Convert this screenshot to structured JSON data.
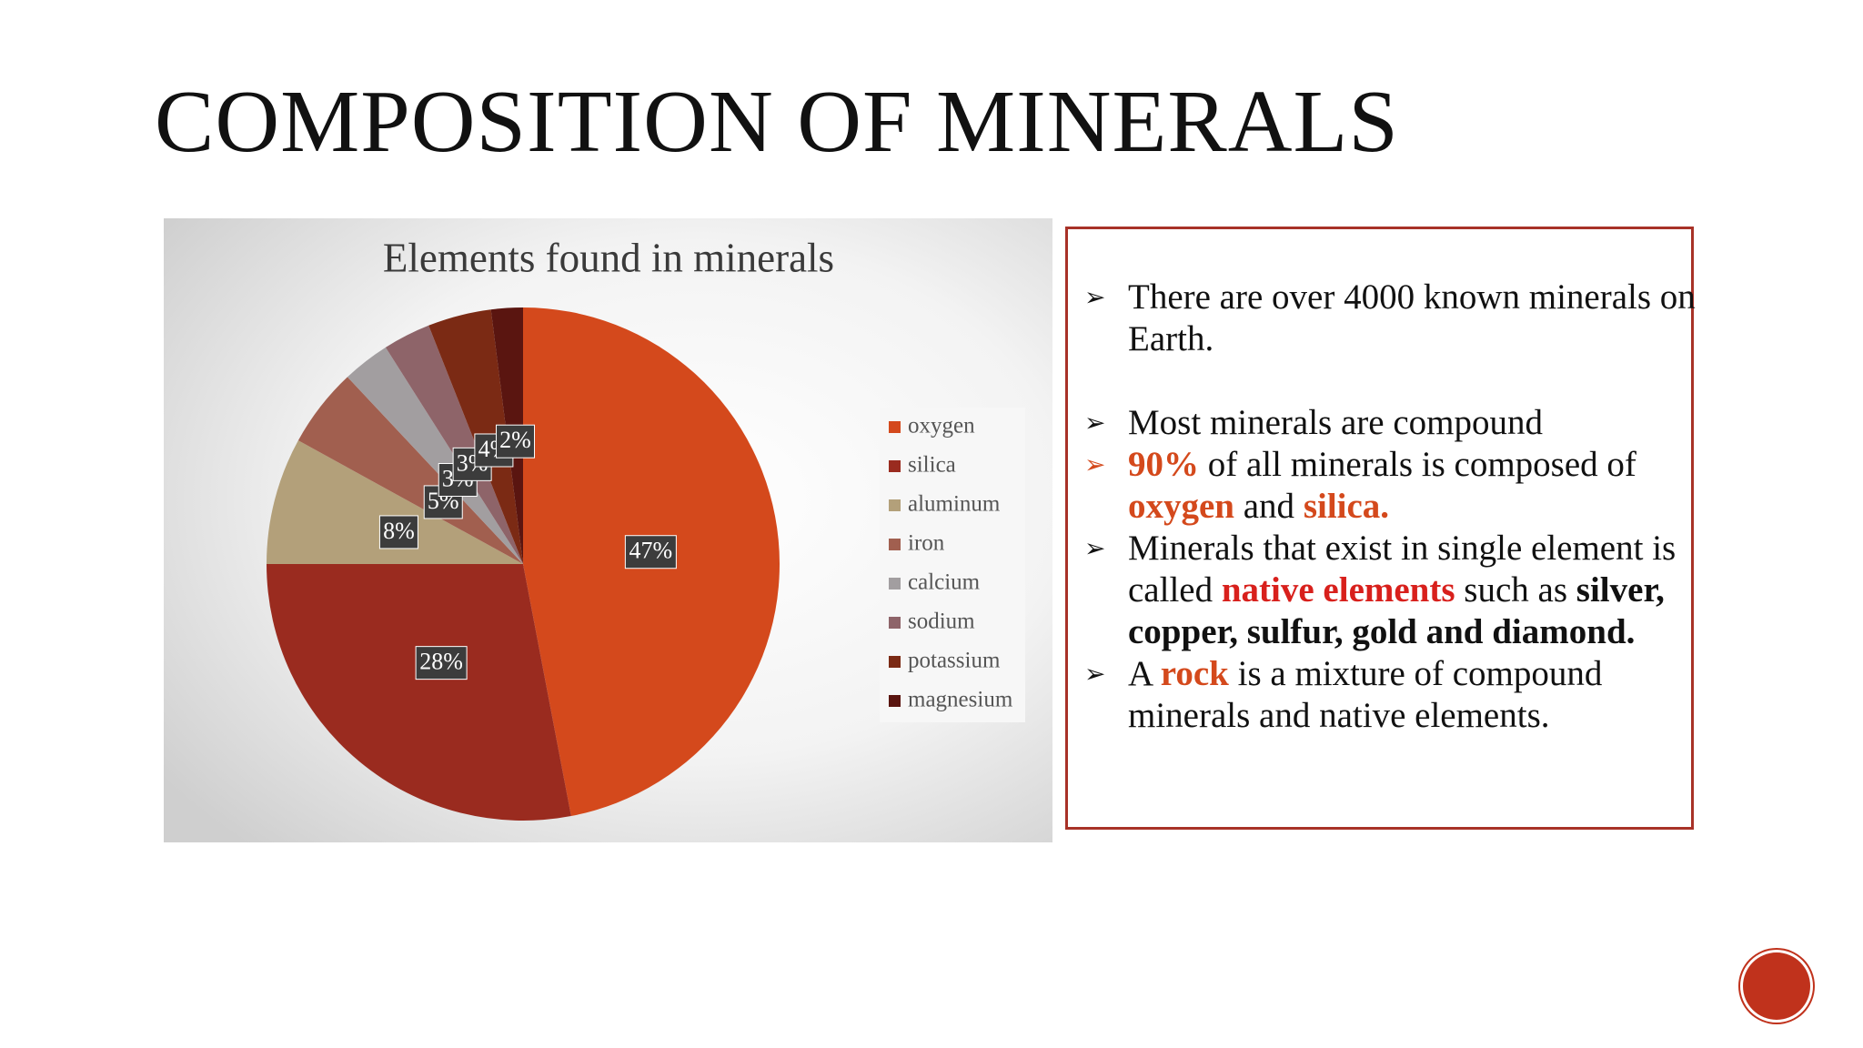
{
  "slide_title": "COMPOSITION OF MINERALS",
  "chart_data": {
    "type": "pie",
    "title": "Elements found in minerals",
    "categories": [
      "oxygen",
      "silica",
      "aluminum",
      "iron",
      "calcium",
      "sodium",
      "potassium",
      "magnesium"
    ],
    "values": [
      47,
      28,
      8,
      5,
      3,
      3,
      4,
      2
    ],
    "value_labels": [
      "47%",
      "28%",
      "8%",
      "5%",
      "3%",
      "3%",
      "4%",
      "2%"
    ],
    "colors": [
      "#d4491c",
      "#9a2b1f",
      "#b3a07a",
      "#a15f4f",
      "#a29ea0",
      "#8e6469",
      "#7b2a14",
      "#5a1510"
    ],
    "legend": "right"
  },
  "text_box": {
    "bullets": [
      [
        "There are over 4000 known minerals on Earth."
      ],
      [
        "Most minerals are compound"
      ],
      [
        "90%",
        " of all minerals is composed of ",
        "oxygen",
        " and ",
        "silica."
      ],
      [
        "Minerals that exist in single element is called ",
        "native elements",
        " such as ",
        "silver, copper, sulfur, gold and diamond."
      ],
      [
        "A ",
        "rock",
        " is a mixture of compound minerals and native elements."
      ]
    ]
  }
}
